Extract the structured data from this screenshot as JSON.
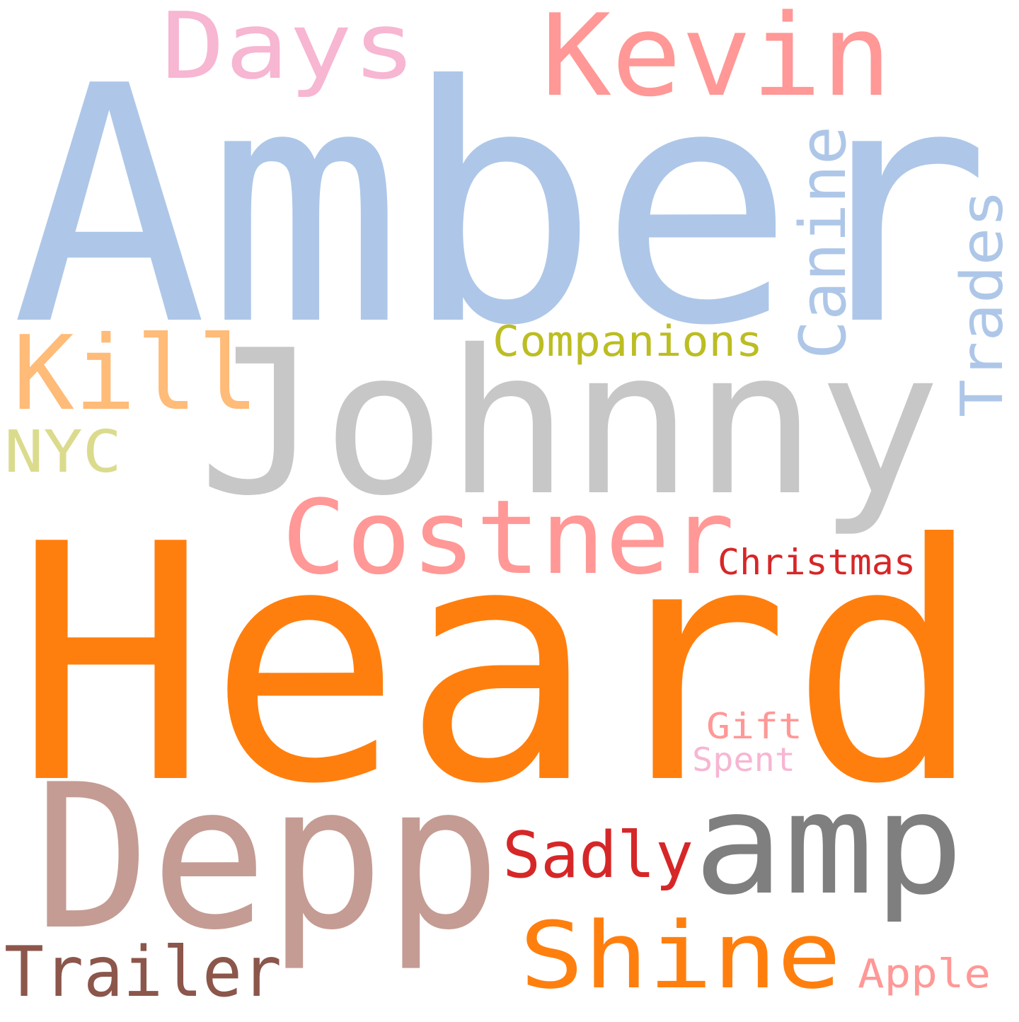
{
  "words": [
    {
      "text": "Heard",
      "color": "#ff7f0e"
    },
    {
      "text": "Amber",
      "color": "#aec7e8"
    },
    {
      "text": "Johnny",
      "color": "#c7c7c7"
    },
    {
      "text": "Depp",
      "color": "#c49c94"
    },
    {
      "text": "amp",
      "color": "#7f7f7f"
    },
    {
      "text": "Kevin",
      "color": "#ff9896"
    },
    {
      "text": "Costner",
      "color": "#ff9896"
    },
    {
      "text": "Kill",
      "color": "#ffbb78"
    },
    {
      "text": "Days",
      "color": "#f7b6d2"
    },
    {
      "text": "Shine",
      "color": "#ff7f0e"
    },
    {
      "text": "Canine",
      "color": "#aec7e8"
    },
    {
      "text": "Trades",
      "color": "#aec7e8"
    },
    {
      "text": "Trailer",
      "color": "#8c564b"
    },
    {
      "text": "Sadly",
      "color": "#d62728"
    },
    {
      "text": "NYC",
      "color": "#dbdb8d"
    },
    {
      "text": "Companions",
      "color": "#bcbd22"
    },
    {
      "text": "Christmas",
      "color": "#d62728"
    },
    {
      "text": "Gift",
      "color": "#ff9896"
    },
    {
      "text": "Apple",
      "color": "#ff9896"
    },
    {
      "text": "Spent",
      "color": "#f7b6d2"
    }
  ]
}
